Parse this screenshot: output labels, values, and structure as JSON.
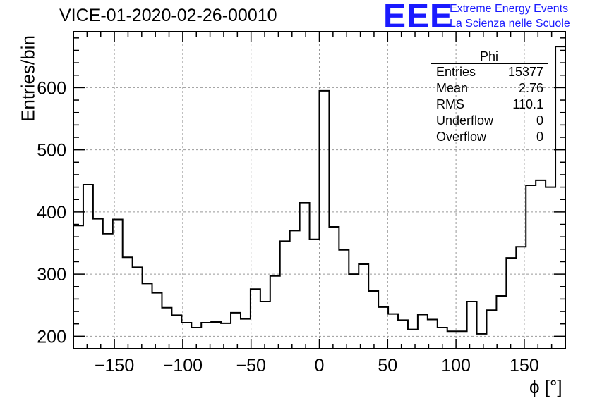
{
  "header": {
    "title": "VICE-01-2020-02-26-00010",
    "logo_text": "EEE",
    "org_line1": "Extreme Energy Events",
    "org_line2": "La Scienza nelle Scuole"
  },
  "stats_box": {
    "name": "Phi",
    "rows": [
      {
        "label": "Entries",
        "value": "15377"
      },
      {
        "label": "Mean",
        "value": "2.76"
      },
      {
        "label": "RMS",
        "value": "110.1"
      },
      {
        "label": "Underflow",
        "value": "0"
      },
      {
        "label": "Overflow",
        "value": "0"
      }
    ]
  },
  "chart_data": {
    "type": "bar",
    "subtype": "step-histogram",
    "xlabel": "ϕ [°]",
    "ylabel": "Entries/bin",
    "xlim": [
      -180,
      180
    ],
    "ylim": [
      180,
      690
    ],
    "bin_width": 7.2,
    "x_ticks": [
      -150,
      -100,
      -50,
      0,
      50,
      100,
      150
    ],
    "x_tick_labels": [
      "−150",
      "−100",
      "−50",
      "0",
      "50",
      "100",
      "150"
    ],
    "y_ticks": [
      200,
      300,
      400,
      500,
      600
    ],
    "grid": true,
    "values": [
      378,
      444,
      389,
      365,
      388,
      327,
      311,
      285,
      270,
      246,
      234,
      222,
      214,
      222,
      223,
      221,
      238,
      228,
      276,
      256,
      297,
      353,
      370,
      415,
      356,
      595,
      376,
      339,
      300,
      316,
      273,
      247,
      236,
      226,
      211,
      235,
      227,
      214,
      208,
      208,
      256,
      204,
      242,
      265,
      326,
      344,
      443,
      451,
      440,
      666
    ]
  }
}
